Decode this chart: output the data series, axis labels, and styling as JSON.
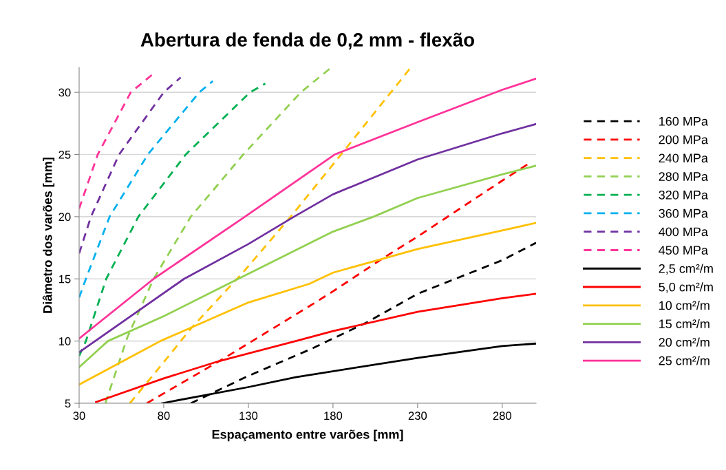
{
  "chart_data": {
    "type": "line",
    "title": "Abertura de fenda de 0,2 mm - flexão",
    "xlabel": "Espaçamento entre varões [mm]",
    "ylabel": "Diâmetro dos varões [mm]",
    "xlim": [
      30,
      300
    ],
    "xticks": [
      30,
      80,
      130,
      180,
      230,
      280
    ],
    "ylim": [
      5,
      32
    ],
    "yticks": [
      5,
      10,
      15,
      20,
      25,
      30
    ],
    "grid": "y",
    "legend": "right",
    "marker": "none",
    "series": [
      {
        "name": "160 MPa",
        "color": "#000000",
        "line_style": "dashed",
        "x": [
          96,
          130,
          166,
          200,
          230,
          280,
          300
        ],
        "values": [
          5.0,
          7.2,
          9.3,
          11.5,
          13.8,
          16.5,
          17.9
        ]
      },
      {
        "name": "200 MPa",
        "color": "#ff0000",
        "line_style": "dashed",
        "x": [
          70,
          113,
          166,
          180,
          210,
          230,
          280,
          296
        ],
        "values": [
          5.0,
          8.4,
          12.8,
          14.0,
          16.7,
          18.4,
          22.9,
          24.3
        ]
      },
      {
        "name": "240 MPa",
        "color": "#ffc000",
        "line_style": "dashed",
        "x": [
          60,
          80,
          96,
          128,
          155,
          183,
          226
        ],
        "values": [
          5.0,
          8.3,
          11.0,
          15.7,
          20.0,
          24.7,
          32.0
        ]
      },
      {
        "name": "280 MPa",
        "color": "#92d050",
        "line_style": "dashed",
        "x": [
          45.5,
          58.5,
          74,
          96,
          127,
          161,
          179
        ],
        "values": [
          5.0,
          10.3,
          15.0,
          20.0,
          25.0,
          30.0,
          32.0
        ]
      },
      {
        "name": "320 MPa",
        "color": "#00b050",
        "line_style": "dashed",
        "x": [
          30,
          34,
          46,
          65,
          93,
          131,
          140
        ],
        "values": [
          8.8,
          10.0,
          15.0,
          20.0,
          25.0,
          30.0,
          30.7
        ]
      },
      {
        "name": "360 MPa",
        "color": "#00b0f0",
        "line_style": "dashed",
        "x": [
          30,
          34,
          48,
          70.6,
          101,
          109
        ],
        "values": [
          13.5,
          15.0,
          20.0,
          25.0,
          30.0,
          30.9
        ]
      },
      {
        "name": "400 MPa",
        "color": "#7030a0",
        "line_style": "dashed",
        "x": [
          30,
          37,
          53.6,
          80,
          90
        ],
        "values": [
          17.05,
          20.0,
          25.0,
          30.0,
          31.2
        ]
      },
      {
        "name": "450 MPa",
        "color": "#ff3399",
        "line_style": "dashed",
        "x": [
          30,
          41,
          60.5,
          73
        ],
        "values": [
          20.65,
          25.0,
          30.0,
          31.4
        ]
      },
      {
        "name": "2,5 cm²/m",
        "color": "#000000",
        "line_style": "solid",
        "x": [
          79,
          130,
          158,
          230,
          280,
          300
        ],
        "values": [
          5.0,
          6.3,
          7.1,
          8.65,
          9.6,
          9.8
        ]
      },
      {
        "name": "5,0 cm²/m",
        "color": "#ff0000",
        "line_style": "solid",
        "x": [
          40,
          80,
          113,
          158,
          180,
          230,
          280,
          300
        ],
        "values": [
          5.1,
          7.0,
          8.4,
          10.0,
          10.8,
          12.35,
          13.45,
          13.8
        ]
      },
      {
        "name": "10 cm²/m",
        "color": "#ffc000",
        "line_style": "solid",
        "x": [
          30,
          78,
          130,
          166,
          180,
          230,
          280,
          300
        ],
        "values": [
          6.5,
          10.0,
          13.1,
          14.6,
          15.5,
          17.4,
          18.9,
          19.5
        ]
      },
      {
        "name": "15 cm²/m",
        "color": "#92d050",
        "line_style": "solid",
        "x": [
          30,
          47,
          80,
          124,
          180,
          204,
          230,
          280,
          300
        ],
        "values": [
          7.9,
          10.0,
          12.0,
          15.0,
          18.8,
          20.0,
          21.5,
          23.4,
          24.1
        ]
      },
      {
        "name": "20 cm²/m",
        "color": "#7030a0",
        "line_style": "solid",
        "x": [
          30,
          92,
          130,
          157,
          180,
          230,
          280,
          300
        ],
        "values": [
          9.1,
          15.0,
          17.8,
          20.0,
          21.8,
          24.6,
          26.7,
          27.45
        ]
      },
      {
        "name": "25 cm²/m",
        "color": "#ff3399",
        "line_style": "solid",
        "x": [
          30,
          74,
          128,
          181,
          230,
          280,
          300
        ],
        "values": [
          10.2,
          15.0,
          20.0,
          25.0,
          27.6,
          30.2,
          31.1
        ]
      }
    ]
  }
}
